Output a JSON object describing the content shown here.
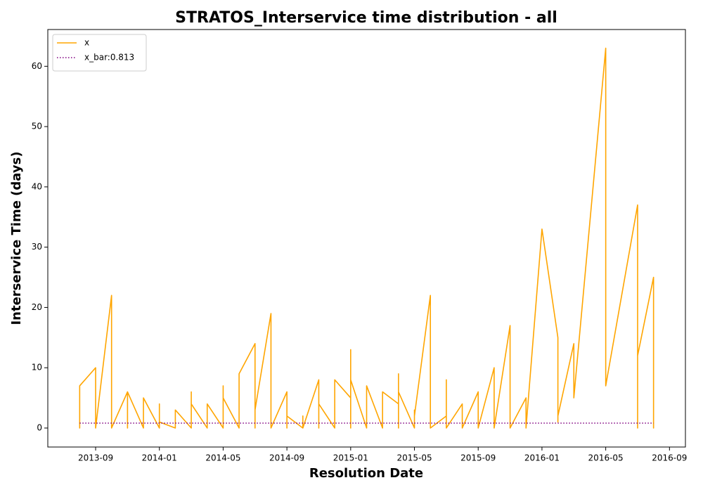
{
  "chart_data": {
    "type": "line",
    "title": "STRATOS_Interservice time distribution - all",
    "x_label": "Resolution Date",
    "y_label": "Interservice Time (days)",
    "x": [
      "2013-08",
      "2013-08",
      "2013-08",
      "2013-08",
      "2013-08",
      "2013-08",
      "2013-08",
      "2013-08",
      "2013-09",
      "2013-09",
      "2013-09",
      "2013-09",
      "2013-10",
      "2013-10",
      "2013-10",
      "2013-10",
      "2013-11",
      "2013-11",
      "2013-11",
      "2013-11",
      "2013-11",
      "2013-11",
      "2013-11",
      "2013-12",
      "2013-12",
      "2013-12",
      "2013-12",
      "2013-12",
      "2013-12",
      "2014-01",
      "2014-01",
      "2014-01",
      "2014-01",
      "2014-01",
      "2014-01",
      "2014-01",
      "2014-01",
      "2014-01",
      "2014-02",
      "2014-02",
      "2014-02",
      "2014-02",
      "2014-02",
      "2014-02",
      "2014-02",
      "2014-02",
      "2014-02",
      "2014-02",
      "2014-03",
      "2014-03",
      "2014-03",
      "2014-03",
      "2014-03",
      "2014-03",
      "2014-03",
      "2014-03",
      "2014-04",
      "2014-04",
      "2014-04",
      "2014-04",
      "2014-04",
      "2014-04",
      "2014-04",
      "2014-04",
      "2014-04",
      "2014-04",
      "2014-05",
      "2014-05",
      "2014-05",
      "2014-05",
      "2014-05",
      "2014-06",
      "2014-06",
      "2014-06",
      "2014-06",
      "2014-07",
      "2014-07",
      "2014-07",
      "2014-07",
      "2014-07",
      "2014-08",
      "2014-08",
      "2014-09",
      "2014-09",
      "2014-09",
      "2014-09",
      "2014-09",
      "2014-09",
      "2014-09",
      "2014-10",
      "2014-10",
      "2014-10",
      "2014-10",
      "2014-10",
      "2014-10",
      "2014-10",
      "2014-11",
      "2014-11",
      "2014-11",
      "2014-11",
      "2014-11",
      "2014-11",
      "2014-11",
      "2014-12",
      "2014-12",
      "2014-12",
      "2014-12",
      "2014-12",
      "2014-12",
      "2014-12",
      "2014-12",
      "2015-01",
      "2015-01",
      "2015-01",
      "2015-01",
      "2015-02",
      "2015-02",
      "2015-02",
      "2015-02",
      "2015-02",
      "2015-02",
      "2015-02",
      "2015-02",
      "2015-03",
      "2015-03",
      "2015-03",
      "2015-03",
      "2015-03",
      "2015-03",
      "2015-03",
      "2015-03",
      "2015-03",
      "2015-03",
      "2015-04",
      "2015-04",
      "2015-04",
      "2015-04",
      "2015-04",
      "2015-04",
      "2015-04",
      "2015-04",
      "2015-05",
      "2015-05",
      "2015-05",
      "2015-05",
      "2015-05",
      "2015-05",
      "2015-05",
      "2015-05",
      "2015-05",
      "2015-05",
      "2015-06",
      "2015-06",
      "2015-06",
      "2015-06",
      "2015-07",
      "2015-07",
      "2015-07",
      "2015-07",
      "2015-07",
      "2015-07",
      "2015-07",
      "2015-07",
      "2015-08",
      "2015-08",
      "2015-08",
      "2015-08",
      "2015-08",
      "2015-08",
      "2015-08",
      "2015-08",
      "2015-09",
      "2015-09",
      "2015-09",
      "2015-09",
      "2015-09",
      "2015-09",
      "2015-10",
      "2015-10",
      "2015-10",
      "2015-10",
      "2015-11",
      "2015-11",
      "2015-11",
      "2015-11",
      "2015-11",
      "2015-11",
      "2015-12",
      "2015-12",
      "2015-12",
      "2015-12",
      "2015-12",
      "2015-12",
      "2016-01",
      "2016-02",
      "2016-02",
      "2016-02",
      "2016-02",
      "2016-03",
      "2016-03",
      "2016-05",
      "2016-05",
      "2016-07",
      "2016-07",
      "2016-07",
      "2016-08",
      "2016-08",
      "2016-08",
      "2016-08"
    ],
    "series": [
      {
        "name": "x",
        "color": "#ffa500",
        "values": [
          0,
          3,
          0,
          1,
          0,
          2,
          0,
          7,
          10,
          0,
          8,
          0,
          22,
          0,
          10,
          0,
          6,
          2,
          5,
          2,
          4,
          0,
          6,
          0,
          4,
          0,
          1,
          4,
          5,
          0,
          3,
          0,
          3,
          0,
          4,
          3,
          0,
          1,
          0,
          3,
          0,
          3,
          0,
          3,
          0,
          2,
          0,
          3,
          0,
          5,
          0,
          4,
          0,
          6,
          0,
          4,
          0,
          1,
          0,
          1,
          0,
          2,
          0,
          3,
          0,
          4,
          0,
          4,
          0,
          7,
          5,
          0,
          6,
          1,
          9,
          14,
          0,
          5,
          0,
          3,
          19,
          0,
          6,
          0,
          4,
          1,
          4,
          0,
          2,
          0,
          2,
          0,
          2,
          0,
          2,
          0,
          8,
          0,
          1,
          0,
          4,
          0,
          4,
          0,
          3,
          0,
          5,
          0,
          2,
          1,
          8,
          5,
          0,
          13,
          8,
          0,
          2,
          0,
          1,
          0,
          2,
          0,
          7,
          0,
          4,
          0,
          1,
          0,
          4,
          0,
          1,
          0,
          6,
          4,
          9,
          0,
          3,
          0,
          4,
          2,
          6,
          0,
          3,
          0,
          1,
          0,
          1,
          0,
          3,
          0,
          2,
          22,
          0,
          6,
          0,
          2,
          0,
          8,
          0,
          6,
          0,
          6,
          0,
          4,
          0,
          3,
          0,
          3,
          0,
          2,
          0,
          6,
          0,
          3,
          0,
          3,
          0,
          10,
          0,
          3,
          0,
          17,
          0,
          2,
          0,
          3,
          0,
          5,
          0,
          5,
          0,
          5,
          0,
          33,
          15,
          1,
          5,
          2,
          14,
          5,
          63,
          7,
          37,
          0,
          12,
          25,
          0,
          12,
          0
        ]
      }
    ],
    "hlines": [
      {
        "name": "x_bar:0.813",
        "value": 0.813,
        "color": "#800080",
        "style": "dotted"
      }
    ],
    "xlim": [
      "2013-06",
      "2016-10"
    ],
    "xticks": [
      "2013-09",
      "2014-01",
      "2014-05",
      "2014-09",
      "2015-01",
      "2015-05",
      "2015-09",
      "2016-01",
      "2016-05",
      "2016-09"
    ],
    "ylim": [
      -3.15,
      66.1
    ],
    "yticks": [
      0,
      10,
      20,
      30,
      40,
      50,
      60
    ],
    "grid": false,
    "legend": "upper left"
  }
}
